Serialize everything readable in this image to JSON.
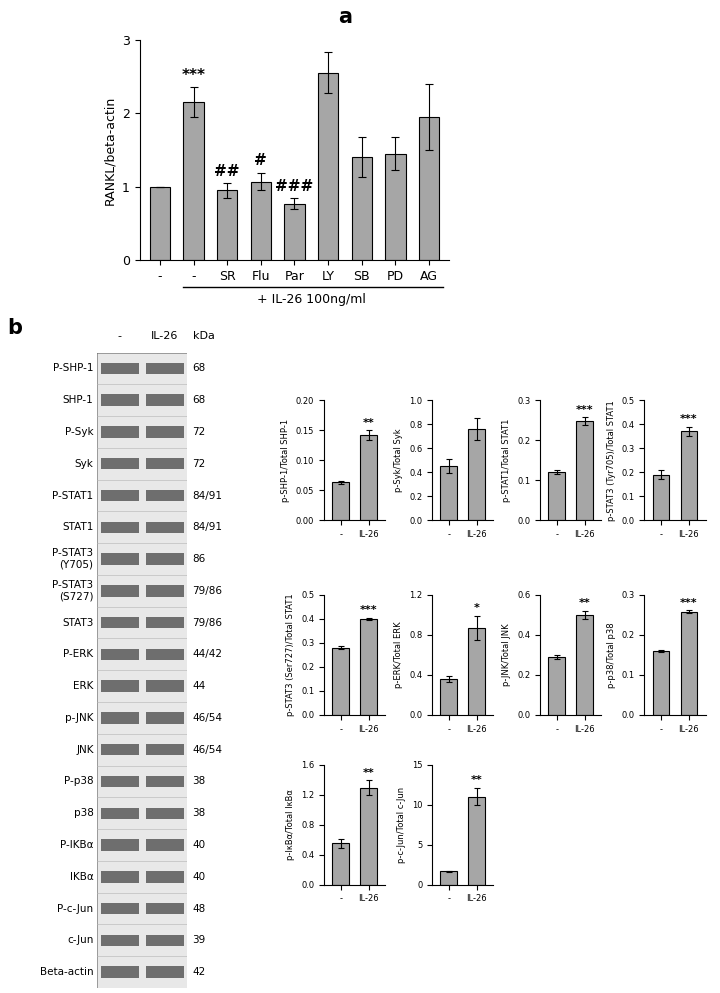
{
  "panels": [
    "a",
    "b"
  ],
  "chart_data": [
    {
      "type": "bar",
      "ylabel": "RANKL/beta-actin",
      "categories": [
        "-",
        "-",
        "SR",
        "Flu",
        "Par",
        "LY",
        "SB",
        "PD",
        "AG"
      ],
      "values": [
        1,
        2.15,
        0.95,
        1.07,
        0.77,
        2.55,
        1.4,
        1.45,
        1.95
      ],
      "errors": [
        0,
        0.2,
        0.1,
        0.12,
        0.07,
        0.28,
        0.27,
        0.22,
        0.45
      ],
      "annotations": [
        null,
        "***",
        "##",
        "#",
        "###",
        null,
        null,
        null,
        null
      ],
      "group_label": "+ IL-26 100ng/ml",
      "ylim": [
        0,
        3
      ],
      "yticks": [
        0,
        1,
        2,
        3
      ],
      "color": "#a6a6a6"
    },
    {
      "type": "bar",
      "ylabel": "p-SHP-1/Total SHP-1",
      "categories": [
        "-",
        "IL-26"
      ],
      "values": [
        0.063,
        0.142
      ],
      "errors": [
        0.003,
        0.008
      ],
      "annotations": [
        null,
        "**"
      ],
      "ylim": [
        0,
        0.2
      ],
      "yticks": [
        {
          "value": 0,
          "label": "0.00"
        },
        {
          "value": 0.05,
          "label": "0.05"
        },
        {
          "value": 0.1,
          "label": "0.10"
        },
        {
          "value": 0.15,
          "label": "0.15"
        },
        {
          "value": 0.2,
          "label": "0.20"
        }
      ],
      "color": "#a6a6a6"
    },
    {
      "type": "bar",
      "ylabel": "p-Syk/Total Syk",
      "categories": [
        "-",
        "IL-26"
      ],
      "values": [
        0.45,
        0.76
      ],
      "errors": [
        0.06,
        0.09
      ],
      "annotations": [
        null,
        null
      ],
      "ylim": [
        0,
        1.0
      ],
      "yticks": [
        {
          "value": 0,
          "label": "0.0"
        },
        {
          "value": 0.2,
          "label": "0.2"
        },
        {
          "value": 0.4,
          "label": "0.4"
        },
        {
          "value": 0.6,
          "label": "0.6"
        },
        {
          "value": 0.8,
          "label": "0.8"
        },
        {
          "value": 1.0,
          "label": "1.0"
        }
      ],
      "color": "#a6a6a6"
    },
    {
      "type": "bar",
      "ylabel": "p-STAT1/Total STAT1",
      "categories": [
        "-",
        "IL-26"
      ],
      "values": [
        0.12,
        0.248
      ],
      "errors": [
        0.005,
        0.01
      ],
      "annotations": [
        null,
        "***"
      ],
      "ylim": [
        0,
        0.3
      ],
      "yticks": [
        {
          "value": 0,
          "label": "0.0"
        },
        {
          "value": 0.1,
          "label": "0.1"
        },
        {
          "value": 0.2,
          "label": "0.2"
        },
        {
          "value": 0.3,
          "label": "0.3"
        }
      ],
      "color": "#a6a6a6"
    },
    {
      "type": "bar",
      "ylabel": "p-STAT3 (Tyr705)/Total STAT1",
      "categories": [
        "-",
        "IL-26"
      ],
      "values": [
        0.19,
        0.37
      ],
      "errors": [
        0.02,
        0.02
      ],
      "annotations": [
        null,
        "***"
      ],
      "ylim": [
        0,
        0.5
      ],
      "yticks": [
        {
          "value": 0,
          "label": "0.0"
        },
        {
          "value": 0.1,
          "label": "0.1"
        },
        {
          "value": 0.2,
          "label": "0.2"
        },
        {
          "value": 0.3,
          "label": "0.3"
        },
        {
          "value": 0.4,
          "label": "0.4"
        },
        {
          "value": 0.5,
          "label": "0.5"
        }
      ],
      "color": "#a6a6a6"
    },
    {
      "type": "bar",
      "ylabel": "p-STAT3 (Ser727)/Total STAT1",
      "categories": [
        "-",
        "IL-26"
      ],
      "values": [
        0.28,
        0.4
      ],
      "errors": [
        0.005,
        0.005
      ],
      "annotations": [
        null,
        "***"
      ],
      "ylim": [
        0,
        0.5
      ],
      "yticks": [
        {
          "value": 0,
          "label": "0.0"
        },
        {
          "value": 0.1,
          "label": "0.1"
        },
        {
          "value": 0.2,
          "label": "0.2"
        },
        {
          "value": 0.3,
          "label": "0.3"
        },
        {
          "value": 0.4,
          "label": "0.4"
        },
        {
          "value": 0.5,
          "label": "0.5"
        }
      ],
      "color": "#a6a6a6"
    },
    {
      "type": "bar",
      "ylabel": "p-ERK/Total ERK",
      "categories": [
        "-",
        "IL-26"
      ],
      "values": [
        0.36,
        0.87
      ],
      "errors": [
        0.03,
        0.12
      ],
      "annotations": [
        null,
        "*"
      ],
      "ylim": [
        0,
        1.2
      ],
      "yticks": [
        {
          "value": 0,
          "label": "0.0"
        },
        {
          "value": 0.4,
          "label": "0.4"
        },
        {
          "value": 0.8,
          "label": "0.8"
        },
        {
          "value": 1.2,
          "label": "1.2"
        }
      ],
      "color": "#a6a6a6"
    },
    {
      "type": "bar",
      "ylabel": "p-JNK/Total JNK",
      "categories": [
        "-",
        "IL-26"
      ],
      "values": [
        0.29,
        0.5
      ],
      "errors": [
        0.01,
        0.02
      ],
      "annotations": [
        null,
        "**"
      ],
      "ylim": [
        0,
        0.6
      ],
      "yticks": [
        {
          "value": 0,
          "label": "0.0"
        },
        {
          "value": 0.2,
          "label": "0.2"
        },
        {
          "value": 0.4,
          "label": "0.4"
        },
        {
          "value": 0.6,
          "label": "0.6"
        }
      ],
      "color": "#a6a6a6"
    },
    {
      "type": "bar",
      "ylabel": "p-p38/Total p38",
      "categories": [
        "-",
        "IL-26"
      ],
      "values": [
        0.16,
        0.258
      ],
      "errors": [
        0.002,
        0.003
      ],
      "annotations": [
        null,
        "***"
      ],
      "ylim": [
        0,
        0.3
      ],
      "yticks": [
        {
          "value": 0,
          "label": "0.0"
        },
        {
          "value": 0.1,
          "label": "0.1"
        },
        {
          "value": 0.2,
          "label": "0.2"
        },
        {
          "value": 0.3,
          "label": "0.3"
        }
      ],
      "color": "#a6a6a6"
    },
    {
      "type": "bar",
      "ylabel": "p-IκBα/Total IκBα",
      "categories": [
        "-",
        "IL-26"
      ],
      "values": [
        0.55,
        1.29
      ],
      "errors": [
        0.06,
        0.1
      ],
      "annotations": [
        null,
        "**"
      ],
      "ylim": [
        0,
        1.6
      ],
      "yticks": [
        {
          "value": 0,
          "label": "0.0"
        },
        {
          "value": 0.4,
          "label": "0.4"
        },
        {
          "value": 0.8,
          "label": "0.8"
        },
        {
          "value": 1.2,
          "label": "1.2"
        },
        {
          "value": 1.6,
          "label": "1.6"
        }
      ],
      "color": "#a6a6a6"
    },
    {
      "type": "bar",
      "ylabel": "p-c-Jun/Total c-Jun",
      "categories": [
        "-",
        "IL-26"
      ],
      "values": [
        1.7,
        11
      ],
      "errors": [
        0.05,
        1.1
      ],
      "annotations": [
        null,
        "**"
      ],
      "ylim": [
        0,
        15
      ],
      "yticks": [
        0,
        5,
        10,
        15
      ],
      "color": "#a6a6a6"
    }
  ],
  "blot": {
    "columns": [
      "-",
      "IL-26"
    ],
    "unit": "kDa",
    "rows": [
      {
        "label": "P-SHP-1",
        "kda": "68"
      },
      {
        "label": "SHP-1",
        "kda": "68"
      },
      {
        "label": "P-Syk",
        "kda": "72"
      },
      {
        "label": "Syk",
        "kda": "72"
      },
      {
        "label": "P-STAT1",
        "kda": "84/91"
      },
      {
        "label": "STAT1",
        "kda": "84/91"
      },
      {
        "label": "P-STAT3\n(Y705)",
        "kda": "86"
      },
      {
        "label": "P-STAT3\n(S727)",
        "kda": "79/86"
      },
      {
        "label": "STAT3",
        "kda": "79/86"
      },
      {
        "label": "P-ERK",
        "kda": "44/42"
      },
      {
        "label": "ERK",
        "kda": "44"
      },
      {
        "label": "p-JNK",
        "kda": "46/54"
      },
      {
        "label": "JNK",
        "kda": "46/54"
      },
      {
        "label": "P-p38",
        "kda": "38"
      },
      {
        "label": "p38",
        "kda": "38"
      },
      {
        "label": "P-IKBα",
        "kda": "40"
      },
      {
        "label": "IKBα",
        "kda": "40"
      },
      {
        "label": "P-c-Jun",
        "kda": "48"
      },
      {
        "label": "c-Jun",
        "kda": "39"
      },
      {
        "label": "Beta-actin",
        "kda": "42"
      }
    ]
  }
}
